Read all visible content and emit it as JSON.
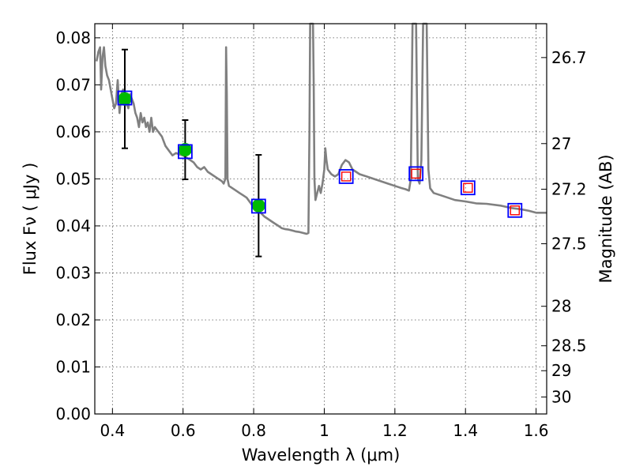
{
  "chart_data": {
    "type": "scatter",
    "title": "",
    "xlabel": "Wavelength  λ (μm)",
    "ylabel": "Flux  Fν  ( μJy )",
    "ylabel_right": "Magnitude (AB)",
    "xlim": [
      0.35,
      1.63
    ],
    "ylim": [
      0.0,
      0.083
    ],
    "grid": true,
    "x_ticks": [
      0.4,
      0.6,
      0.8,
      1.0,
      1.2,
      1.4,
      1.6
    ],
    "x_tick_labels": [
      "0.4",
      "0.6",
      "0.8",
      "1",
      "1.2",
      "1.4",
      "1.6"
    ],
    "y_ticks": [
      0.0,
      0.01,
      0.02,
      0.03,
      0.04,
      0.05,
      0.06,
      0.07,
      0.08
    ],
    "y_tick_labels": [
      "0.00",
      "0.01",
      "0.02",
      "0.03",
      "0.04",
      "0.05",
      "0.06",
      "0.07",
      "0.08"
    ],
    "right_ticks": [
      {
        "label": "26.7",
        "flux": 0.0758
      },
      {
        "label": "27",
        "flux": 0.0575
      },
      {
        "label": "27.2",
        "flux": 0.0478
      },
      {
        "label": "27.5",
        "flux": 0.0362
      },
      {
        "label": "28",
        "flux": 0.0229
      },
      {
        "label": "28.5",
        "flux": 0.0145
      },
      {
        "label": "29",
        "flux": 0.0092
      },
      {
        "label": "30",
        "flux": 0.0036
      }
    ],
    "model_spectrum": {
      "color": "#808080",
      "x": [
        0.355,
        0.36,
        0.365,
        0.368,
        0.372,
        0.376,
        0.38,
        0.385,
        0.39,
        0.395,
        0.4,
        0.405,
        0.41,
        0.415,
        0.42,
        0.425,
        0.43,
        0.435,
        0.44,
        0.445,
        0.45,
        0.455,
        0.46,
        0.465,
        0.47,
        0.475,
        0.48,
        0.485,
        0.49,
        0.495,
        0.5,
        0.505,
        0.51,
        0.515,
        0.52,
        0.53,
        0.54,
        0.55,
        0.56,
        0.57,
        0.58,
        0.59,
        0.6,
        0.61,
        0.62,
        0.63,
        0.64,
        0.65,
        0.66,
        0.67,
        0.68,
        0.69,
        0.7,
        0.71,
        0.715,
        0.72,
        0.722,
        0.724,
        0.726,
        0.73,
        0.74,
        0.75,
        0.76,
        0.77,
        0.78,
        0.79,
        0.8,
        0.81,
        0.82,
        0.83,
        0.84,
        0.85,
        0.86,
        0.87,
        0.88,
        0.89,
        0.9,
        0.91,
        0.92,
        0.93,
        0.94,
        0.95,
        0.955,
        0.958,
        0.96,
        0.962,
        0.965,
        0.968,
        0.97,
        0.972,
        0.975,
        0.98,
        0.985,
        0.99,
        0.995,
        1.0,
        1.003,
        1.006,
        1.01,
        1.02,
        1.03,
        1.04,
        1.05,
        1.06,
        1.07,
        1.08,
        1.09,
        1.1,
        1.12,
        1.14,
        1.16,
        1.18,
        1.2,
        1.22,
        1.23,
        1.24,
        1.245,
        1.25,
        1.255,
        1.26,
        1.265,
        1.27,
        1.275,
        1.28,
        1.285,
        1.29,
        1.295,
        1.3,
        1.31,
        1.33,
        1.35,
        1.37,
        1.4,
        1.43,
        1.46,
        1.5,
        1.53,
        1.56,
        1.58,
        1.6,
        1.63
      ],
      "y": [
        0.075,
        0.077,
        0.078,
        0.069,
        0.076,
        0.078,
        0.074,
        0.072,
        0.071,
        0.069,
        0.067,
        0.065,
        0.066,
        0.071,
        0.064,
        0.068,
        0.069,
        0.067,
        0.066,
        0.065,
        0.068,
        0.067,
        0.066,
        0.064,
        0.063,
        0.061,
        0.064,
        0.062,
        0.063,
        0.061,
        0.062,
        0.06,
        0.063,
        0.06,
        0.061,
        0.06,
        0.059,
        0.057,
        0.056,
        0.055,
        0.0555,
        0.0552,
        0.055,
        0.0545,
        0.054,
        0.0535,
        0.0525,
        0.052,
        0.0525,
        0.0515,
        0.051,
        0.0505,
        0.05,
        0.0495,
        0.049,
        0.05,
        0.078,
        0.068,
        0.05,
        0.0485,
        0.048,
        0.0475,
        0.047,
        0.0465,
        0.046,
        0.045,
        0.044,
        0.0432,
        0.0428,
        0.042,
        0.0415,
        0.041,
        0.0405,
        0.04,
        0.0395,
        0.0393,
        0.0392,
        0.039,
        0.0388,
        0.0387,
        0.0385,
        0.0383,
        0.0385,
        0.06,
        0.083,
        0.083,
        0.083,
        0.083,
        0.07,
        0.05,
        0.0455,
        0.047,
        0.0485,
        0.047,
        0.049,
        0.052,
        0.0565,
        0.054,
        0.052,
        0.051,
        0.0505,
        0.051,
        0.053,
        0.054,
        0.0535,
        0.052,
        0.0515,
        0.051,
        0.0505,
        0.05,
        0.0495,
        0.049,
        0.0485,
        0.048,
        0.0478,
        0.0475,
        0.05,
        0.083,
        0.083,
        0.083,
        0.05,
        0.049,
        0.054,
        0.083,
        0.083,
        0.083,
        0.052,
        0.048,
        0.047,
        0.0465,
        0.046,
        0.0455,
        0.0452,
        0.0448,
        0.0447,
        0.0443,
        0.0438,
        0.0435,
        0.0432,
        0.0428,
        0.0428
      ]
    },
    "observed_points": {
      "marker": "green circle",
      "color": "#00bb00",
      "x": [
        0.435,
        0.606,
        0.814
      ],
      "y": [
        0.067,
        0.0562,
        0.0443
      ],
      "yerr": [
        0.0105,
        0.0063,
        0.0108
      ]
    },
    "model_photometry": {
      "marker": "blue open square",
      "color": "#0000ff",
      "x": [
        0.435,
        0.606,
        0.814,
        1.062,
        1.26,
        1.407,
        1.54
      ],
      "y": [
        0.0672,
        0.0558,
        0.0442,
        0.0505,
        0.0511,
        0.0481,
        0.0433
      ]
    },
    "upper_limits": {
      "marker": "red open square",
      "color": "#ff0000",
      "x": [
        1.062,
        1.26,
        1.407,
        1.54
      ],
      "y": [
        0.0505,
        0.0511,
        0.0481,
        0.0433
      ]
    }
  }
}
